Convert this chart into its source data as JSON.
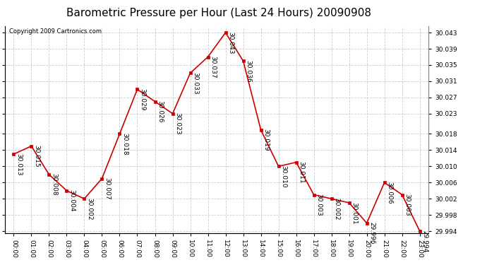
{
  "title": "Barometric Pressure per Hour (Last 24 Hours) 20090908",
  "copyright": "Copyright 2009 Cartronics.com",
  "hours": [
    "00:00",
    "01:00",
    "02:00",
    "03:00",
    "04:00",
    "05:00",
    "06:00",
    "07:00",
    "08:00",
    "09:00",
    "10:00",
    "11:00",
    "12:00",
    "13:00",
    "14:00",
    "15:00",
    "16:00",
    "17:00",
    "18:00",
    "19:00",
    "20:00",
    "21:00",
    "22:00",
    "23:00"
  ],
  "values": [
    30.013,
    30.015,
    30.008,
    30.004,
    30.002,
    30.007,
    30.018,
    30.029,
    30.026,
    30.023,
    30.033,
    30.037,
    30.043,
    30.036,
    30.019,
    30.01,
    30.011,
    30.003,
    30.002,
    30.001,
    29.996,
    30.006,
    30.003,
    29.994
  ],
  "line_color": "#cc0000",
  "marker_color": "#cc0000",
  "bg_color": "#ffffff",
  "grid_color": "#cccccc",
  "ylim_min": 29.9935,
  "ylim_max": 30.0445,
  "yticks": [
    29.994,
    29.998,
    30.002,
    30.006,
    30.01,
    30.014,
    30.018,
    30.023,
    30.027,
    30.031,
    30.035,
    30.039,
    30.043
  ],
  "title_fontsize": 11,
  "label_fontsize": 6.5,
  "annot_fontsize": 6.5,
  "copyright_fontsize": 6
}
